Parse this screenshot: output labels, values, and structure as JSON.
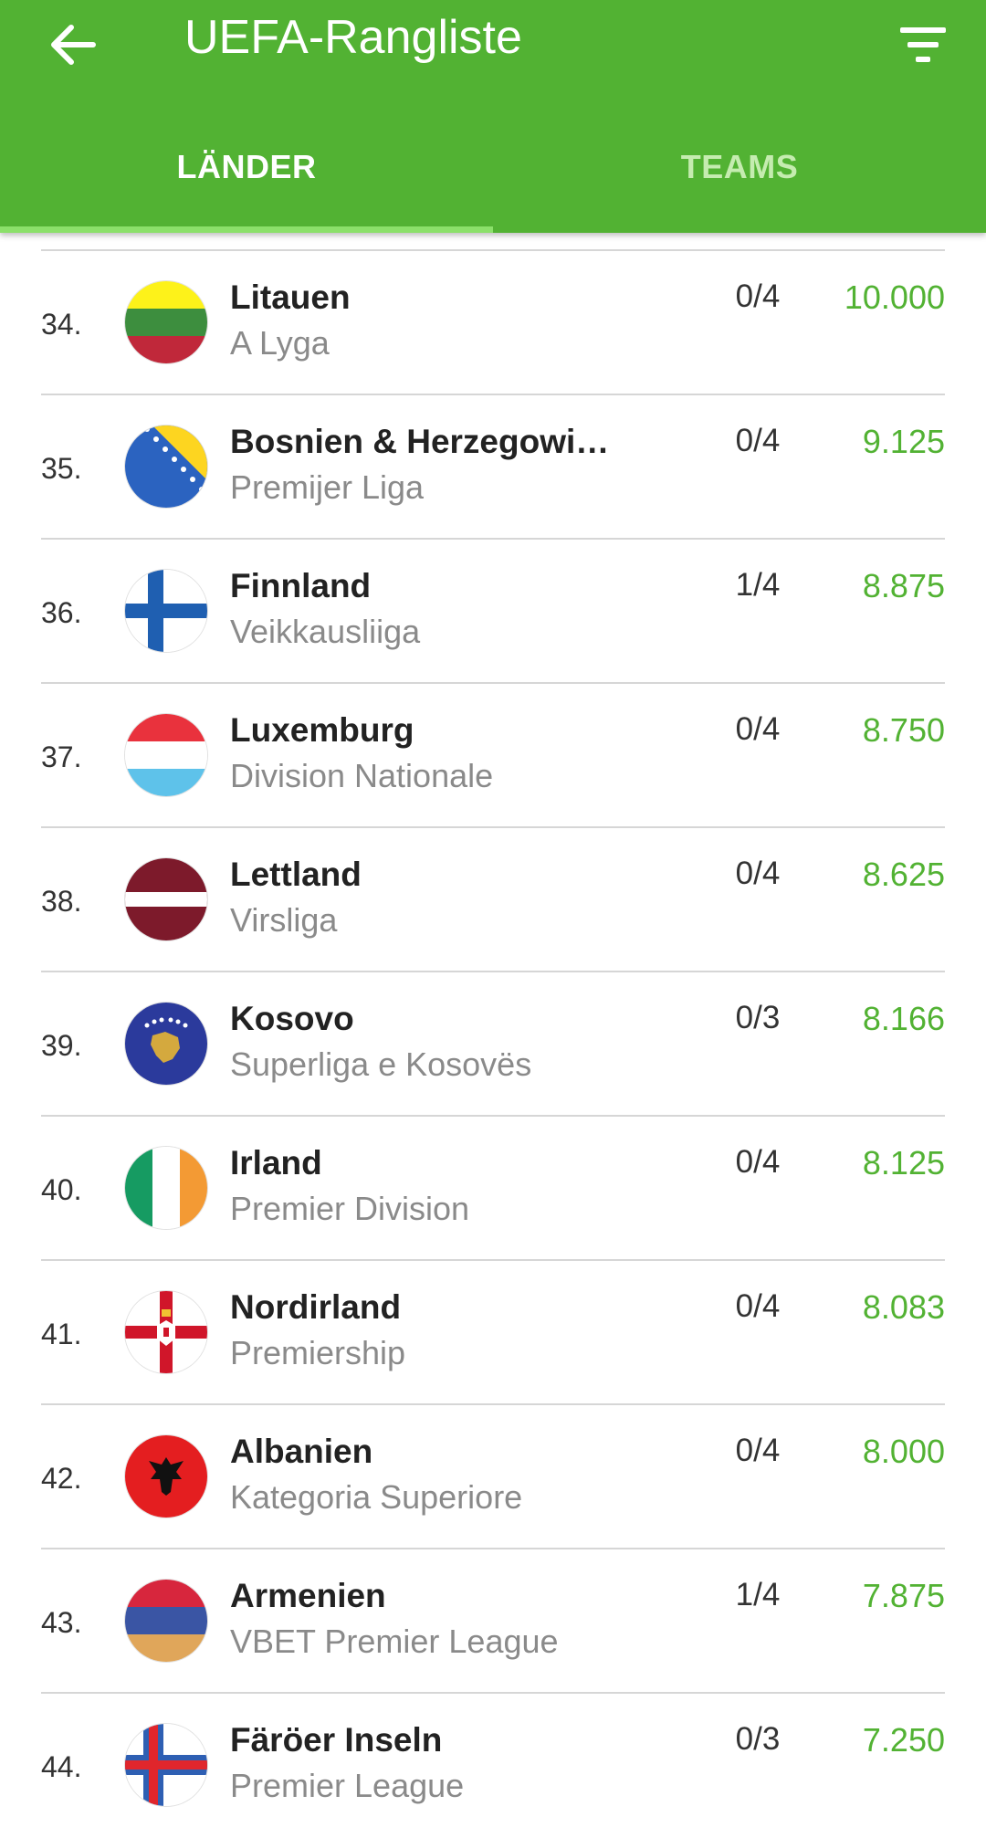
{
  "header": {
    "title": "UEFA-Rangliste",
    "back_icon": "arrow-left-icon",
    "filter_icon": "filter-icon",
    "color": "#52b233"
  },
  "tabs": [
    {
      "label": "LÄNDER",
      "active": true
    },
    {
      "label": "TEAMS",
      "active": false
    }
  ],
  "rows": [
    {
      "rank": "34.",
      "country": "Litauen",
      "league": "A Lyga",
      "clubs": "0/4",
      "points": "10.000",
      "flag": "lithuania-flag-icon"
    },
    {
      "rank": "35.",
      "country": "Bosnien & Herzegowi…",
      "league": "Premijer Liga",
      "clubs": "0/4",
      "points": "9.125",
      "flag": "bosnia-flag-icon"
    },
    {
      "rank": "36.",
      "country": "Finnland",
      "league": "Veikkausliiga",
      "clubs": "1/4",
      "points": "8.875",
      "flag": "finland-flag-icon"
    },
    {
      "rank": "37.",
      "country": "Luxemburg",
      "league": "Division Nationale",
      "clubs": "0/4",
      "points": "8.750",
      "flag": "luxembourg-flag-icon"
    },
    {
      "rank": "38.",
      "country": "Lettland",
      "league": "Virsliga",
      "clubs": "0/4",
      "points": "8.625",
      "flag": "latvia-flag-icon"
    },
    {
      "rank": "39.",
      "country": "Kosovo",
      "league": "Superliga e Kosovës",
      "clubs": "0/3",
      "points": "8.166",
      "flag": "kosovo-flag-icon"
    },
    {
      "rank": "40.",
      "country": "Irland",
      "league": "Premier Division",
      "clubs": "0/4",
      "points": "8.125",
      "flag": "ireland-flag-icon"
    },
    {
      "rank": "41.",
      "country": "Nordirland",
      "league": "Premiership",
      "clubs": "0/4",
      "points": "8.083",
      "flag": "northern-ireland-flag-icon"
    },
    {
      "rank": "42.",
      "country": "Albanien",
      "league": "Kategoria Superiore",
      "clubs": "0/4",
      "points": "8.000",
      "flag": "albania-flag-icon"
    },
    {
      "rank": "43.",
      "country": "Armenien",
      "league": "VBET Premier League",
      "clubs": "1/4",
      "points": "7.875",
      "flag": "armenia-flag-icon"
    },
    {
      "rank": "44.",
      "country": "Färöer Inseln",
      "league": "Premier League",
      "clubs": "0/3",
      "points": "7.250",
      "flag": "faroe-islands-flag-icon"
    }
  ]
}
